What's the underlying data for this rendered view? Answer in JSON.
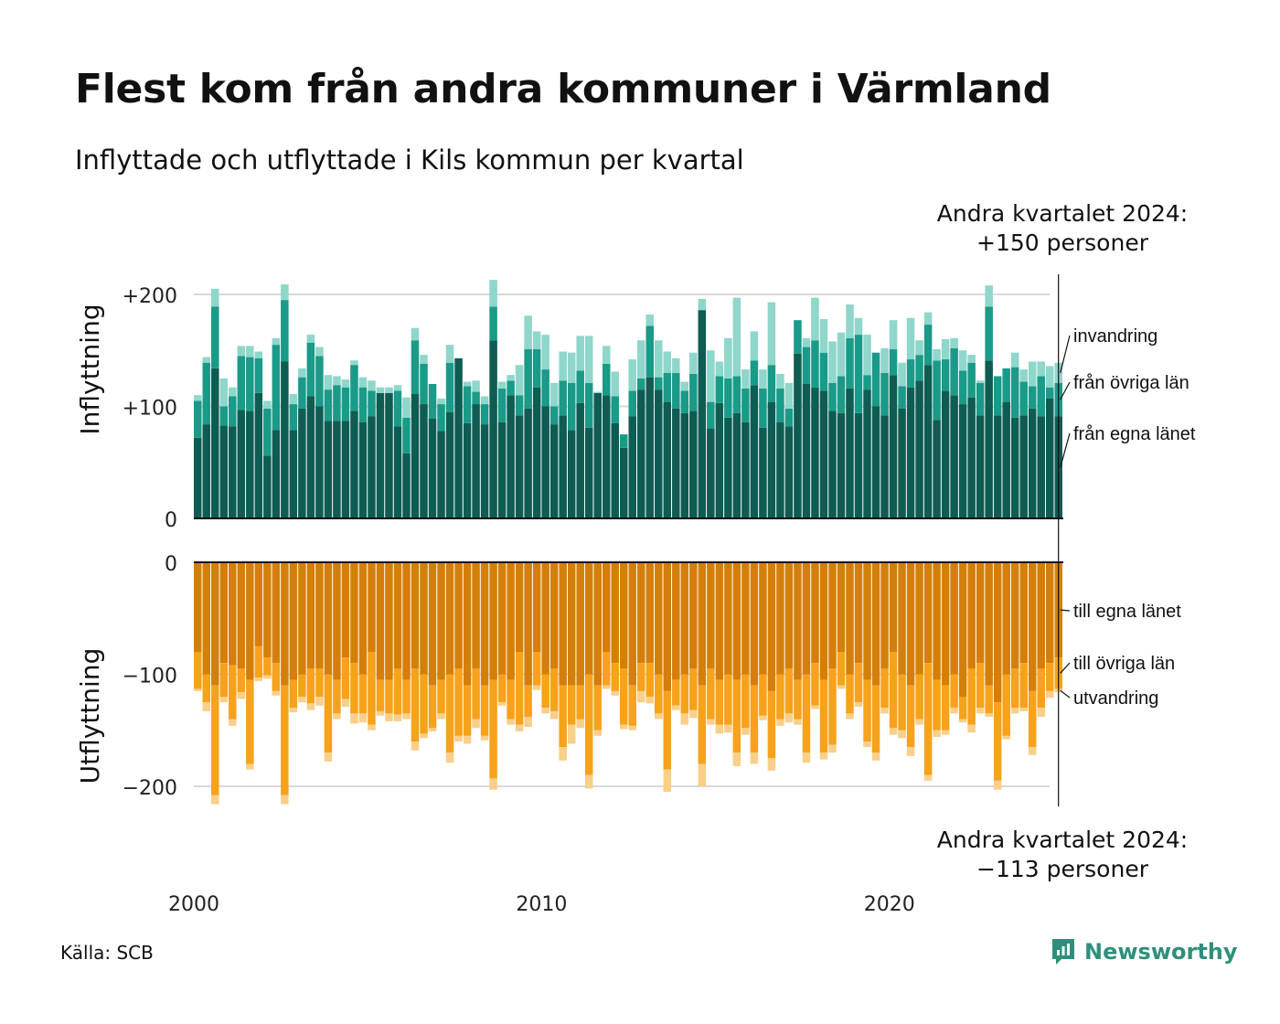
{
  "title": "Flest kom från andra kommuner i Värmland",
  "subtitle": "Inflyttade och utflyttade i Kils kommun per kvartal",
  "callout_top": {
    "line1": "Andra kvartalet 2024:",
    "line2": "+150 personer"
  },
  "callout_bottom": {
    "line1": "Andra kvartalet 2024:",
    "line2": "−113 personer"
  },
  "source": "Källa: SCB",
  "brand": "Newsworthy",
  "colors": {
    "in_own_county": "#0e5c52",
    "in_other_counties": "#1a9a88",
    "in_immigration": "#8fd6cb",
    "out_own_county": "#d47f0a",
    "out_other_counties": "#f7a21b",
    "out_emigration": "#f9cf8a",
    "grid": "#d9d9d9",
    "brand": "#2f8f7c"
  },
  "chart_data": [
    {
      "type": "bar",
      "stacked": true,
      "ylabel": "Inflyttning",
      "ylim": [
        0,
        220
      ],
      "y_ticks": [
        0,
        100,
        200
      ],
      "y_tick_labels": [
        "0",
        "+100",
        "+200"
      ],
      "x_ticks": [
        2000,
        2010,
        2020
      ],
      "x_tick_labels": [
        "2000",
        "2010",
        "2020"
      ],
      "x_start": 2000.0,
      "x_step": 0.25,
      "grid": true,
      "series": [
        {
          "name": "från egna länet",
          "values": [
            72,
            84,
            134,
            83,
            82,
            97,
            96,
            112,
            56,
            79,
            140,
            79,
            98,
            109,
            100,
            87,
            87,
            87,
            96,
            86,
            91,
            112,
            112,
            82,
            58,
            111,
            102,
            89,
            78,
            95,
            143,
            85,
            102,
            84,
            159,
            86,
            110,
            92,
            98,
            117,
            100,
            84,
            92,
            79,
            103,
            81,
            112,
            110,
            85,
            63,
            91,
            115,
            126,
            115,
            104,
            98,
            94,
            96,
            186,
            80,
            103,
            90,
            94,
            86,
            119,
            81,
            104,
            86,
            82,
            147,
            120,
            117,
            114,
            96,
            94,
            116,
            94,
            115,
            100,
            92,
            128,
            98,
            117,
            123,
            137,
            88,
            114,
            110,
            102,
            108,
            92,
            141,
            92,
            104,
            90,
            92,
            98,
            91,
            107,
            91
          ],
          "labels": [
            "från egna länet"
          ]
        },
        {
          "name": "från övriga län",
          "values": [
            33,
            55,
            55,
            17,
            27,
            48,
            48,
            31,
            42,
            76,
            55,
            23,
            28,
            48,
            45,
            28,
            32,
            30,
            41,
            31,
            23,
            0,
            0,
            32,
            32,
            48,
            36,
            31,
            24,
            44,
            0,
            33,
            11,
            18,
            30,
            30,
            13,
            18,
            53,
            34,
            33,
            16,
            31,
            42,
            29,
            40,
            0,
            28,
            24,
            12,
            23,
            10,
            46,
            11,
            26,
            32,
            20,
            33,
            0,
            24,
            24,
            35,
            33,
            30,
            22,
            35,
            33,
            30,
            16,
            30,
            33,
            42,
            34,
            25,
            33,
            45,
            70,
            13,
            48,
            38,
            23,
            20,
            25,
            23,
            36,
            53,
            28,
            42,
            30,
            31,
            29,
            48,
            35,
            30,
            45,
            30,
            20,
            36,
            10,
            30
          ],
          "labels": [
            "från övriga län"
          ]
        },
        {
          "name": "invandring",
          "values": [
            5,
            5,
            16,
            25,
            8,
            9,
            10,
            6,
            7,
            6,
            14,
            9,
            8,
            7,
            8,
            13,
            8,
            7,
            4,
            9,
            9,
            5,
            5,
            5,
            18,
            11,
            8,
            0,
            5,
            16,
            0,
            4,
            10,
            7,
            24,
            6,
            5,
            27,
            30,
            16,
            31,
            21,
            26,
            27,
            31,
            42,
            1,
            16,
            22,
            0,
            28,
            34,
            10,
            33,
            19,
            13,
            8,
            19,
            10,
            46,
            13,
            36,
            70,
            17,
            26,
            17,
            56,
            13,
            23,
            0,
            8,
            38,
            30,
            37,
            39,
            30,
            15,
            36,
            0,
            22,
            26,
            21,
            37,
            13,
            11,
            10,
            18,
            9,
            18,
            7,
            2,
            19,
            0,
            0,
            13,
            11,
            22,
            13,
            19,
            18
          ]
        }
      ]
    },
    {
      "type": "bar",
      "stacked": true,
      "ylabel": "Utflyttning",
      "ylim": [
        -220,
        0
      ],
      "y_ticks": [
        0,
        -100,
        -200
      ],
      "y_tick_labels": [
        "0",
        "−100",
        "−200"
      ],
      "x_ticks": [
        2000,
        2010,
        2020
      ],
      "x_tick_labels": [
        "2000",
        "2010",
        "2020"
      ],
      "x_start": 2000.0,
      "x_step": 0.25,
      "grid": true,
      "series": [
        {
          "name": "till egna länet",
          "values": [
            -80,
            -100,
            -110,
            -90,
            -92,
            -95,
            -105,
            -75,
            -85,
            -90,
            -110,
            -105,
            -100,
            -95,
            -95,
            -100,
            -105,
            -85,
            -90,
            -100,
            -80,
            -105,
            -105,
            -95,
            -105,
            -95,
            -100,
            -110,
            -105,
            -100,
            -95,
            -110,
            -95,
            -110,
            -105,
            -100,
            -105,
            -80,
            -110,
            -80,
            -100,
            -95,
            -110,
            -110,
            -110,
            -100,
            -110,
            -80,
            -90,
            -95,
            -110,
            -90,
            -90,
            -100,
            -115,
            -105,
            -100,
            -95,
            -110,
            -95,
            -105,
            -100,
            -105,
            -100,
            -110,
            -100,
            -115,
            -100,
            -95,
            -105,
            -100,
            -90,
            -105,
            -95,
            -80,
            -100,
            -90,
            -105,
            -110,
            -95,
            -80,
            -100,
            -110,
            -100,
            -90,
            -105,
            -110,
            -100,
            -120,
            -95,
            -90,
            -110,
            -125,
            -100,
            -95,
            -90,
            -115,
            -95,
            -90,
            -85
          ],
          "labels": [
            "till egna länet"
          ]
        },
        {
          "name": "till övriga län",
          "values": [
            -33,
            -25,
            -98,
            -30,
            -48,
            -21,
            -75,
            -28,
            -16,
            -25,
            -98,
            -25,
            -20,
            -31,
            -25,
            -70,
            -30,
            -37,
            -45,
            -35,
            -65,
            -28,
            -30,
            -41,
            -30,
            -65,
            -53,
            -38,
            -30,
            -70,
            -60,
            -45,
            -45,
            -45,
            -88,
            -25,
            -35,
            -65,
            -28,
            -30,
            -30,
            -38,
            -55,
            -35,
            -30,
            -90,
            -40,
            -30,
            -25,
            -50,
            -36,
            -25,
            -30,
            -35,
            -70,
            -23,
            -35,
            -37,
            -70,
            -45,
            -40,
            -45,
            -65,
            -48,
            -60,
            -37,
            -60,
            -40,
            -40,
            -35,
            -70,
            -38,
            -65,
            -68,
            -30,
            -35,
            -35,
            -55,
            -60,
            -35,
            -68,
            -50,
            -55,
            -40,
            -100,
            -45,
            -40,
            -30,
            -20,
            -50,
            -40,
            -25,
            -70,
            -55,
            -35,
            -40,
            -50,
            -35,
            -25,
            -28
          ],
          "labels": [
            "till övriga län"
          ]
        },
        {
          "name": "utvandring",
          "values": [
            -2,
            -8,
            -8,
            -5,
            -6,
            -6,
            -5,
            -3,
            -3,
            -4,
            -8,
            -4,
            -5,
            -6,
            -8,
            -8,
            -5,
            -7,
            -9,
            -8,
            -5,
            -4,
            -7,
            -6,
            -5,
            -8,
            -4,
            -3,
            -5,
            -9,
            -5,
            -7,
            -8,
            -4,
            -10,
            -3,
            -5,
            -6,
            -9,
            -4,
            -5,
            -7,
            -12,
            -17,
            -8,
            -12,
            -5,
            -3,
            -4,
            -4,
            -4,
            -10,
            -6,
            -5,
            -20,
            -4,
            -10,
            -7,
            -20,
            -5,
            -8,
            -7,
            -12,
            -6,
            -10,
            -4,
            -11,
            -6,
            -8,
            -5,
            -9,
            -3,
            -6,
            -7,
            -3,
            -5,
            -4,
            -5,
            -7,
            -5,
            -6,
            -7,
            -8,
            -5,
            -5,
            -6,
            -4,
            -5,
            -3,
            -7,
            -5,
            -3,
            -8,
            -3,
            -5,
            -3,
            -7,
            -8,
            -6,
            -3
          ],
          "labels": [
            "utvandring"
          ]
        }
      ]
    }
  ]
}
